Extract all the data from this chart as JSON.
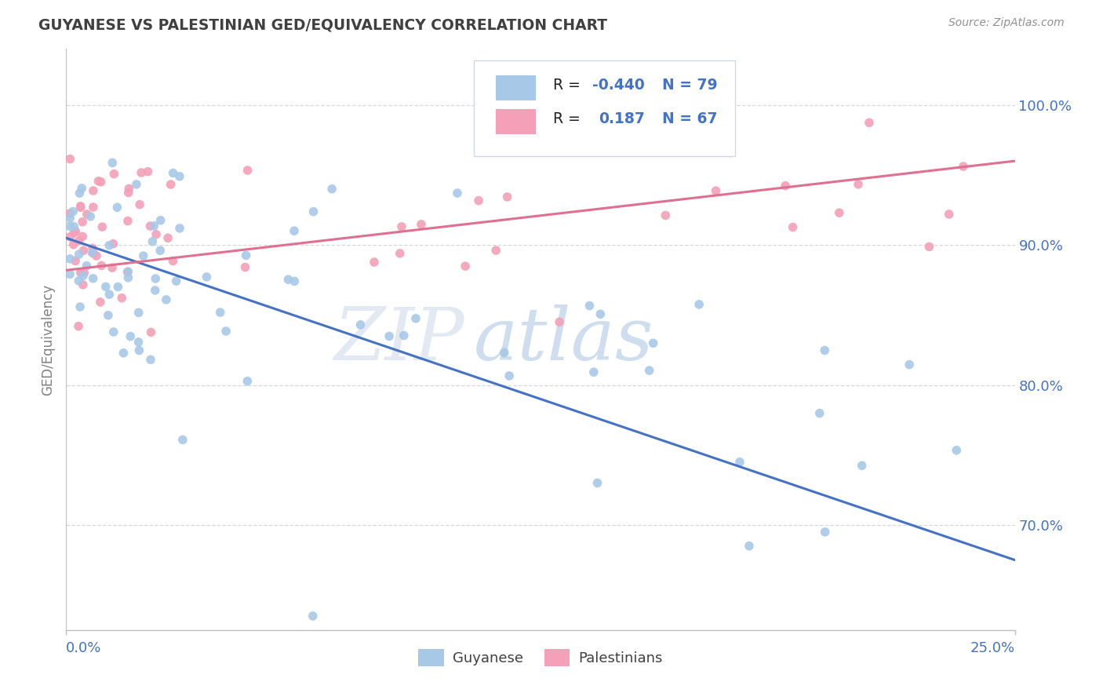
{
  "title": "GUYANESE VS PALESTINIAN GED/EQUIVALENCY CORRELATION CHART",
  "source": "Source: ZipAtlas.com",
  "ylabel": "GED/Equivalency",
  "legend_entries": [
    {
      "label": "Guyanese",
      "R": "-0.440",
      "N": "79",
      "dot_color": "#a8c8e8",
      "line_color": "#4472c4"
    },
    {
      "label": "Palestinians",
      "R": "0.187",
      "N": "67",
      "dot_color": "#f4a0b8",
      "line_color": "#e07090"
    }
  ],
  "watermark_zip": "ZIP",
  "watermark_atlas": "atlas",
  "right_yticks": [
    0.7,
    0.8,
    0.9,
    1.0
  ],
  "right_yticklabels": [
    "70.0%",
    "80.0%",
    "90.0%",
    "100.0%"
  ],
  "xlim": [
    0.0,
    0.25
  ],
  "ylim": [
    0.625,
    1.04
  ],
  "guy_trend": [
    0.905,
    0.675
  ],
  "pal_trend": [
    0.882,
    0.96
  ],
  "background_color": "#ffffff",
  "grid_color": "#d8d8d8",
  "title_color": "#404040",
  "source_color": "#909090",
  "axis_label_color": "#4472c4",
  "ylabel_color": "#808080"
}
